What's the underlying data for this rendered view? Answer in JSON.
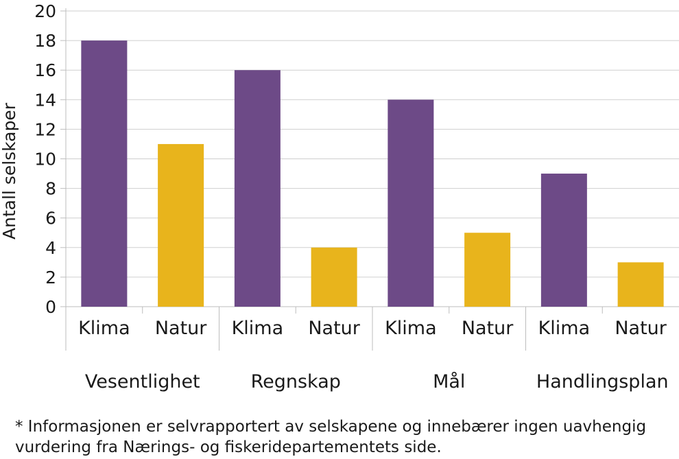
{
  "chart_data": {
    "type": "bar",
    "ylabel": "Antall selskaper",
    "ylim": [
      0,
      20
    ],
    "yticks": [
      0,
      2,
      4,
      6,
      8,
      10,
      12,
      14,
      16,
      18,
      20
    ],
    "grid": true,
    "groups": [
      {
        "name": "Vesentlighet",
        "bars": [
          {
            "label": "Klima",
            "value": 18,
            "color": "#6d4a87"
          },
          {
            "label": "Natur",
            "value": 11,
            "color": "#e8b41c"
          }
        ]
      },
      {
        "name": "Regnskap",
        "bars": [
          {
            "label": "Klima",
            "value": 16,
            "color": "#6d4a87"
          },
          {
            "label": "Natur",
            "value": 4,
            "color": "#e8b41c"
          }
        ]
      },
      {
        "name": "Mål",
        "bars": [
          {
            "label": "Klima",
            "value": 14,
            "color": "#6d4a87"
          },
          {
            "label": "Natur",
            "value": 5,
            "color": "#e8b41c"
          }
        ]
      },
      {
        "name": "Handlingsplan",
        "bars": [
          {
            "label": "Klima",
            "value": 9,
            "color": "#6d4a87"
          },
          {
            "label": "Natur",
            "value": 3,
            "color": "#e8b41c"
          }
        ]
      }
    ]
  },
  "footnote": {
    "line1": "* Informasjonen er selvrapportert av selskapene og innebærer ingen uavhengig",
    "line2": "vurdering fra Nærings- og fiskeridepartementets side."
  }
}
